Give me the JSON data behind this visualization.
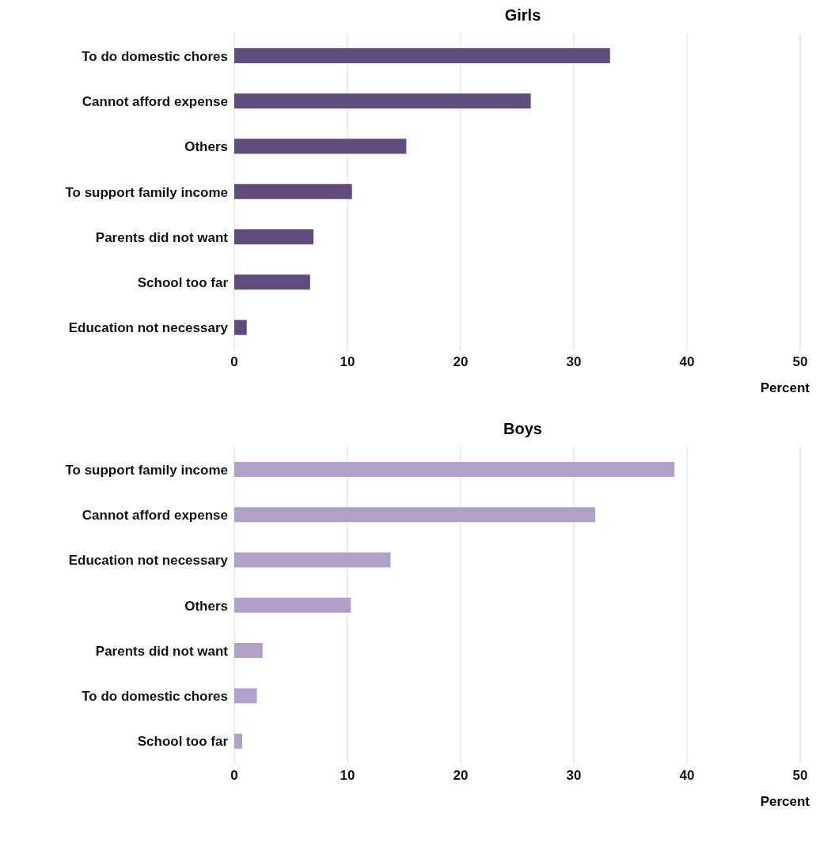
{
  "chart_data": [
    {
      "type": "bar",
      "orientation": "horizontal",
      "title": "Girls",
      "xlabel": "Percent",
      "categories": [
        "To do domestic chores",
        "Cannot afford expense",
        "Others",
        "To support family  income",
        "Parents did not want",
        "School too far",
        "Education not necessary"
      ],
      "values": [
        33.2,
        26.2,
        15.2,
        10.4,
        7.0,
        6.7,
        1.1
      ],
      "color": "#604c7c",
      "xlim": [
        0,
        50
      ],
      "xticks": [
        0,
        10,
        20,
        30,
        40,
        50
      ],
      "grid": "x",
      "legend": false
    },
    {
      "type": "bar",
      "orientation": "horizontal",
      "title": "Boys",
      "xlabel": "Percent",
      "categories": [
        "To support family  income",
        "Cannot afford expense",
        "Education not necessary",
        "Others",
        "Parents did not want",
        "To do domestic chores",
        "School too far"
      ],
      "values": [
        38.9,
        31.9,
        13.8,
        10.3,
        2.5,
        2.0,
        0.7
      ],
      "color": "#b1a0c8",
      "xlim": [
        0,
        50
      ],
      "xticks": [
        0,
        10,
        20,
        30,
        40,
        50
      ],
      "grid": "x",
      "legend": false
    }
  ]
}
